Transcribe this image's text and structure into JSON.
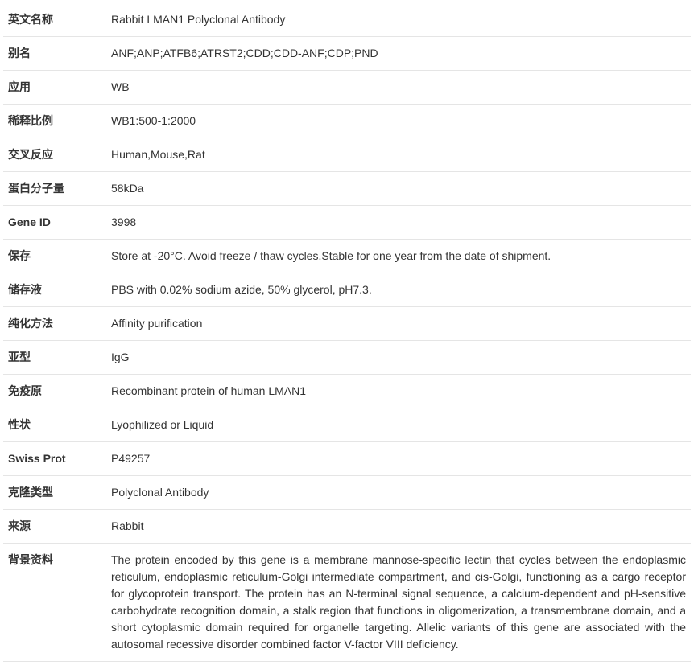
{
  "rows": [
    {
      "label": "英文名称",
      "value": "Rabbit LMAN1 Polyclonal Antibody"
    },
    {
      "label": "别名",
      "value": "ANF;ANP;ATFB6;ATRST2;CDD;CDD-ANF;CDP;PND"
    },
    {
      "label": "应用",
      "value": "WB"
    },
    {
      "label": "稀释比例",
      "value": "WB1:500-1:2000"
    },
    {
      "label": "交叉反应",
      "value": "Human,Mouse,Rat"
    },
    {
      "label": "蛋白分子量",
      "value": "58kDa"
    },
    {
      "label": "Gene ID",
      "value": "3998"
    },
    {
      "label": "保存",
      "value": "Store at -20°C. Avoid freeze / thaw cycles.Stable for one year from the date of shipment."
    },
    {
      "label": "储存液",
      "value": "PBS with 0.02% sodium azide, 50% glycerol, pH7.3."
    },
    {
      "label": "纯化方法",
      "value": "Affinity purification"
    },
    {
      "label": "亚型",
      "value": "IgG"
    },
    {
      "label": "免疫原",
      "value": "Recombinant protein of human LMAN1"
    },
    {
      "label": "性状",
      "value": "Lyophilized or Liquid"
    },
    {
      "label": "Swiss Prot",
      "value": "P49257"
    },
    {
      "label": "克隆类型",
      "value": "Polyclonal Antibody"
    },
    {
      "label": "来源",
      "value": "Rabbit"
    },
    {
      "label": "背景资料",
      "value": "The protein encoded by this gene is a membrane mannose-specific lectin that cycles between the endoplasmic reticulum, endoplasmic reticulum-Golgi intermediate compartment, and cis-Golgi, functioning as a cargo receptor for glycoprotein transport. The protein has an N-terminal signal sequence, a calcium-dependent and pH-sensitive carbohydrate recognition domain, a stalk region that functions in oligomerization, a transmembrane domain, and a short cytoplasmic domain required for organelle targeting. Allelic variants of this gene are associated with the autosomal recessive disorder combined factor V-factor VIII deficiency.",
      "justify": true
    }
  ]
}
